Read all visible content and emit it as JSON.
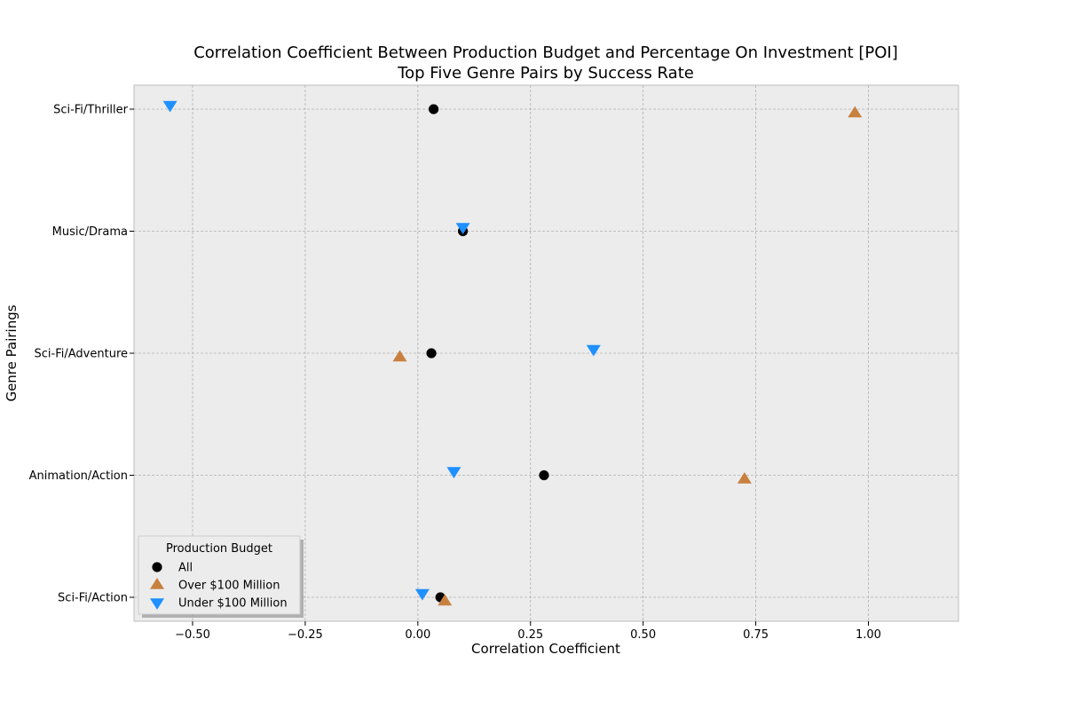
{
  "chart_data": {
    "type": "scatter",
    "title": "Correlation Coefficient Between Production Budget and Percentage On Investment [POI]",
    "subtitle": "Top Five Genre Pairs by Success Rate",
    "xlabel": "Correlation Coefficient",
    "ylabel": "Genre Pairings",
    "xlim": [
      -0.63,
      1.2
    ],
    "x_ticks": [
      -0.5,
      -0.25,
      0.0,
      0.25,
      0.5,
      0.75,
      1.0
    ],
    "x_tick_labels": [
      "−0.50",
      "−0.25",
      "0.00",
      "0.25",
      "0.50",
      "0.75",
      "1.00"
    ],
    "categories": [
      "Sci-Fi/Thriller",
      "Music/Drama",
      "Sci-Fi/Adventure",
      "Animation/Action",
      "Sci-Fi/Action"
    ],
    "grid": true,
    "legend": {
      "title": "Production Budget",
      "placement": "lower-left"
    },
    "series": [
      {
        "name": "All",
        "marker": "circle",
        "color": "#000000",
        "values": [
          0.035,
          0.1,
          0.03,
          0.28,
          0.05
        ]
      },
      {
        "name": "Over $100 Million",
        "marker": "triangle-up",
        "color": "#c8803f",
        "values": [
          0.97,
          null,
          -0.04,
          0.725,
          0.06
        ]
      },
      {
        "name": "Under $100 Million",
        "marker": "triangle-down",
        "color": "#1e90ff",
        "values": [
          -0.55,
          0.1,
          0.39,
          0.08,
          0.01
        ]
      }
    ]
  }
}
